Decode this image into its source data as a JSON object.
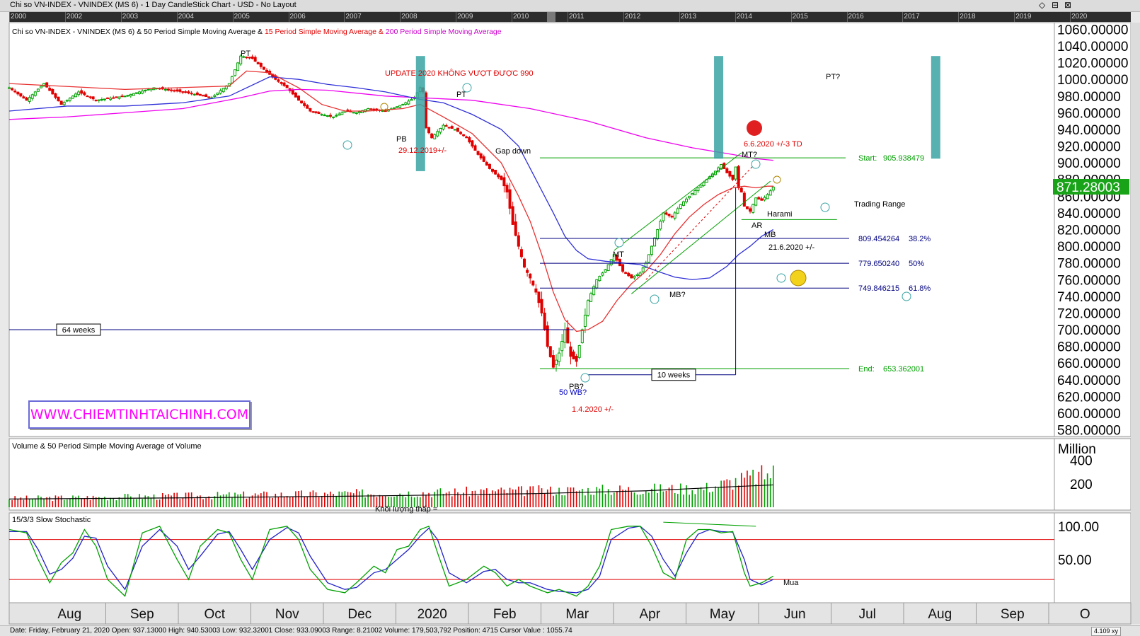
{
  "window": {
    "title": "Chi so VN-INDEX - VNINDEX (MS 6) - 1 Day CandleStick Chart - USD - No Layout",
    "controls": [
      "◇",
      "⊟",
      "⊠"
    ]
  },
  "timeline": {
    "years": [
      "2000",
      "2002",
      "2003",
      "2004",
      "2005",
      "2006",
      "2007",
      "2008",
      "2009",
      "2010",
      "2011",
      "2012",
      "2013",
      "2014",
      "2015",
      "2016",
      "2017",
      "2018",
      "2019",
      "2020"
    ]
  },
  "colors": {
    "candle_up": "#00a000",
    "candle_down": "#e00000",
    "sma15": "#e83030",
    "sma50": "#3030d8",
    "sma200": "#ee00ee",
    "channel": "#00a000",
    "fib": "#000080",
    "background": "#ffffff"
  },
  "chart_data": [
    {
      "type": "candlestick",
      "title": "Chi so VN-INDEX - VNINDEX (MS 6) & 50 Period Simple Moving Average & 15 Period Simple Moving Average & 200 Period Simple Moving Average",
      "title_parts": [
        {
          "text": "Chi so VN-INDEX - VNINDEX (MS 6) & 50 Period Simple Moving Average & ",
          "color": "#000000"
        },
        {
          "text": "15 Period Simple Moving Average & ",
          "color": "#e00000"
        },
        {
          "text": "200 Period Simple Moving Average",
          "color": "#cc00cc"
        }
      ],
      "x_months": [
        "Aug",
        "Sep",
        "Oct",
        "Nov",
        "Dec",
        "2020",
        "Feb",
        "Mar",
        "Apr",
        "May",
        "Jun",
        "Jul",
        "Aug",
        "Sep",
        "O"
      ],
      "y_ticks": [
        "1060.00000",
        "1040.00000",
        "1020.00000",
        "1000.00000",
        "980.00000",
        "960.00000",
        "940.00000",
        "920.00000",
        "900.00000",
        "880.00000",
        "860.00000",
        "840.00000",
        "820.00000",
        "800.00000",
        "780.00000",
        "760.00000",
        "740.00000",
        "720.00000",
        "700.00000",
        "680.00000",
        "660.00000",
        "640.00000",
        "620.00000",
        "600.00000",
        "580.00000"
      ],
      "ylim": [
        572,
        1068
      ],
      "last_price": "871.28003",
      "close_path": [
        [
          0,
          990
        ],
        [
          6,
          975
        ],
        [
          12,
          995
        ],
        [
          18,
          970
        ],
        [
          24,
          985
        ],
        [
          30,
          975
        ],
        [
          40,
          980
        ],
        [
          50,
          990
        ],
        [
          60,
          985
        ],
        [
          70,
          978
        ],
        [
          76,
          995
        ],
        [
          80,
          1028
        ],
        [
          84,
          1025
        ],
        [
          88,
          1012
        ],
        [
          92,
          1000
        ],
        [
          96,
          990
        ],
        [
          100,
          975
        ],
        [
          104,
          962
        ],
        [
          108,
          958
        ],
        [
          112,
          955
        ],
        [
          116,
          962
        ],
        [
          120,
          960
        ],
        [
          124,
          965
        ],
        [
          130,
          962
        ],
        [
          136,
          970
        ],
        [
          140,
          978
        ],
        [
          142,
          990
        ],
        [
          143,
          985
        ],
        [
          144,
          942
        ],
        [
          146,
          930
        ],
        [
          150,
          945
        ],
        [
          154,
          940
        ],
        [
          158,
          930
        ],
        [
          162,
          910
        ],
        [
          166,
          893
        ],
        [
          170,
          880
        ],
        [
          172,
          865
        ],
        [
          174,
          826
        ],
        [
          176,
          800
        ],
        [
          178,
          775
        ],
        [
          180,
          762
        ],
        [
          182,
          745
        ],
        [
          184,
          720
        ],
        [
          186,
          680
        ],
        [
          188,
          655
        ],
        [
          190,
          672
        ],
        [
          192,
          700
        ],
        [
          194,
          668
        ],
        [
          196,
          662
        ],
        [
          198,
          700
        ],
        [
          200,
          735
        ],
        [
          203,
          760
        ],
        [
          206,
          772
        ],
        [
          209,
          790
        ],
        [
          212,
          770
        ],
        [
          215,
          762
        ],
        [
          218,
          768
        ],
        [
          220,
          780
        ],
        [
          222,
          800
        ],
        [
          224,
          820
        ],
        [
          226,
          840
        ],
        [
          229,
          835
        ],
        [
          232,
          850
        ],
        [
          235,
          860
        ],
        [
          238,
          870
        ],
        [
          241,
          880
        ],
        [
          244,
          890
        ],
        [
          246,
          898
        ],
        [
          248,
          888
        ],
        [
          250,
          880
        ],
        [
          251,
          895
        ],
        [
          252,
          870
        ],
        [
          253,
          865
        ],
        [
          254,
          848
        ],
        [
          256,
          842
        ],
        [
          258,
          858
        ],
        [
          260,
          855
        ],
        [
          262,
          862
        ],
        [
          264,
          871
        ]
      ],
      "sma15_path": [
        [
          0,
          995
        ],
        [
          40,
          988
        ],
        [
          76,
          992
        ],
        [
          82,
          1010
        ],
        [
          90,
          1008
        ],
        [
          100,
          990
        ],
        [
          108,
          970
        ],
        [
          116,
          962
        ],
        [
          124,
          962
        ],
        [
          136,
          965
        ],
        [
          142,
          970
        ],
        [
          150,
          955
        ],
        [
          160,
          935
        ],
        [
          170,
          900
        ],
        [
          176,
          860
        ],
        [
          180,
          830
        ],
        [
          184,
          790
        ],
        [
          188,
          745
        ],
        [
          192,
          712
        ],
        [
          196,
          698
        ],
        [
          200,
          700
        ],
        [
          205,
          710
        ],
        [
          210,
          735
        ],
        [
          215,
          755
        ],
        [
          220,
          770
        ],
        [
          225,
          790
        ],
        [
          230,
          815
        ],
        [
          235,
          835
        ],
        [
          240,
          850
        ],
        [
          245,
          862
        ],
        [
          250,
          870
        ],
        [
          254,
          872
        ],
        [
          258,
          870
        ],
        [
          262,
          872
        ],
        [
          264,
          872
        ]
      ],
      "sma50_path": [
        [
          0,
          962
        ],
        [
          20,
          968
        ],
        [
          40,
          968
        ],
        [
          60,
          972
        ],
        [
          76,
          980
        ],
        [
          90,
          1003
        ],
        [
          100,
          1000
        ],
        [
          110,
          994
        ],
        [
          120,
          990
        ],
        [
          130,
          985
        ],
        [
          142,
          976
        ],
        [
          150,
          972
        ],
        [
          160,
          958
        ],
        [
          170,
          940
        ],
        [
          176,
          920
        ],
        [
          182,
          880
        ],
        [
          188,
          840
        ],
        [
          192,
          812
        ],
        [
          196,
          795
        ],
        [
          200,
          785
        ],
        [
          206,
          782
        ],
        [
          212,
          780
        ],
        [
          218,
          778
        ],
        [
          224,
          770
        ],
        [
          230,
          763
        ],
        [
          236,
          760
        ],
        [
          242,
          762
        ],
        [
          248,
          776
        ],
        [
          252,
          790
        ],
        [
          256,
          800
        ],
        [
          260,
          812
        ],
        [
          264,
          820
        ]
      ],
      "sma200_path": [
        [
          0,
          952
        ],
        [
          20,
          955
        ],
        [
          40,
          960
        ],
        [
          60,
          965
        ],
        [
          80,
          978
        ],
        [
          90,
          986
        ],
        [
          100,
          988
        ],
        [
          110,
          987
        ],
        [
          130,
          980
        ],
        [
          142,
          978
        ],
        [
          160,
          975
        ],
        [
          180,
          965
        ],
        [
          200,
          950
        ],
        [
          220,
          930
        ],
        [
          236,
          918
        ],
        [
          250,
          910
        ],
        [
          258,
          905
        ],
        [
          264,
          903
        ]
      ],
      "fib_levels": [
        {
          "price": 905.938479,
          "label": "Start:",
          "value": "905.938479",
          "pct": ""
        },
        {
          "price": 809.454264,
          "label": "",
          "value": "809.454264",
          "pct": "38.2%"
        },
        {
          "price": 779.65024,
          "label": "",
          "value": "779.650240",
          "pct": "50%"
        },
        {
          "price": 749.846215,
          "label": "",
          "value": "749.846215",
          "pct": "61.8%"
        },
        {
          "price": 653.362001,
          "label": "End:",
          "value": "653.362001",
          "pct": ""
        }
      ],
      "annotations": [
        "PT",
        "PT",
        "PB",
        "29.12.2019+/-",
        "Gap down",
        "UPDATE 2020 KHÔNG VƯỢT ĐƯỢC 990",
        "PB?",
        "50 WB?",
        "1.4.2020 +/-",
        "MT",
        "MB?",
        "MT?",
        "6.6.2020 +/-3 TD",
        "AR",
        "Harami",
        "MB",
        "21.6.2020 +/-",
        "Trading Range",
        "PT?",
        "64 weeks",
        "10 weeks"
      ],
      "grid": false
    },
    {
      "type": "bar",
      "title": "Volume & 50 Period Simple Moving Average of Volume",
      "unit": "Million",
      "y_ticks": [
        "400",
        "200"
      ],
      "ylim": [
        0,
        560
      ],
      "annotation": "Khối lượng thấp ="
    },
    {
      "type": "line",
      "title": "15/3/3 Slow Stochastic",
      "y_ticks": [
        "100.00",
        "50.00"
      ],
      "ylim": [
        -15,
        120
      ],
      "levels": [
        80,
        20
      ],
      "k_path": [
        [
          0,
          95
        ],
        [
          6,
          90
        ],
        [
          10,
          50
        ],
        [
          14,
          15
        ],
        [
          18,
          45
        ],
        [
          22,
          60
        ],
        [
          26,
          95
        ],
        [
          30,
          70
        ],
        [
          34,
          20
        ],
        [
          40,
          -5
        ],
        [
          46,
          90
        ],
        [
          52,
          100
        ],
        [
          58,
          50
        ],
        [
          62,
          20
        ],
        [
          66,
          70
        ],
        [
          72,
          95
        ],
        [
          76,
          90
        ],
        [
          80,
          50
        ],
        [
          84,
          20
        ],
        [
          90,
          95
        ],
        [
          96,
          100
        ],
        [
          100,
          80
        ],
        [
          104,
          35
        ],
        [
          110,
          5
        ],
        [
          116,
          0
        ],
        [
          120,
          15
        ],
        [
          126,
          40
        ],
        [
          130,
          30
        ],
        [
          134,
          65
        ],
        [
          138,
          70
        ],
        [
          142,
          95
        ],
        [
          145,
          100
        ],
        [
          148,
          60
        ],
        [
          152,
          10
        ],
        [
          158,
          20
        ],
        [
          164,
          40
        ],
        [
          168,
          30
        ],
        [
          172,
          10
        ],
        [
          176,
          20
        ],
        [
          180,
          10
        ],
        [
          186,
          0
        ],
        [
          190,
          5
        ],
        [
          196,
          -5
        ],
        [
          200,
          10
        ],
        [
          204,
          40
        ],
        [
          208,
          95
        ],
        [
          214,
          100
        ],
        [
          218,
          100
        ],
        [
          222,
          70
        ],
        [
          226,
          30
        ],
        [
          230,
          20
        ],
        [
          234,
          80
        ],
        [
          238,
          95
        ],
        [
          242,
          95
        ],
        [
          246,
          90
        ],
        [
          250,
          92
        ],
        [
          254,
          30
        ],
        [
          256,
          10
        ],
        [
          260,
          15
        ],
        [
          264,
          25
        ]
      ],
      "d_path": [
        [
          0,
          92
        ],
        [
          6,
          92
        ],
        [
          10,
          65
        ],
        [
          14,
          28
        ],
        [
          18,
          35
        ],
        [
          22,
          52
        ],
        [
          26,
          85
        ],
        [
          30,
          82
        ],
        [
          34,
          40
        ],
        [
          40,
          5
        ],
        [
          46,
          70
        ],
        [
          52,
          95
        ],
        [
          58,
          70
        ],
        [
          62,
          35
        ],
        [
          66,
          55
        ],
        [
          72,
          88
        ],
        [
          76,
          92
        ],
        [
          80,
          65
        ],
        [
          84,
          35
        ],
        [
          90,
          80
        ],
        [
          96,
          98
        ],
        [
          100,
          90
        ],
        [
          104,
          55
        ],
        [
          110,
          15
        ],
        [
          116,
          5
        ],
        [
          120,
          8
        ],
        [
          126,
          30
        ],
        [
          130,
          35
        ],
        [
          134,
          50
        ],
        [
          138,
          65
        ],
        [
          142,
          85
        ],
        [
          145,
          97
        ],
        [
          148,
          80
        ],
        [
          152,
          30
        ],
        [
          158,
          15
        ],
        [
          164,
          32
        ],
        [
          168,
          35
        ],
        [
          172,
          20
        ],
        [
          176,
          15
        ],
        [
          180,
          15
        ],
        [
          186,
          5
        ],
        [
          190,
          2
        ],
        [
          196,
          0
        ],
        [
          200,
          5
        ],
        [
          204,
          25
        ],
        [
          208,
          80
        ],
        [
          214,
          97
        ],
        [
          218,
          100
        ],
        [
          222,
          85
        ],
        [
          226,
          50
        ],
        [
          230,
          25
        ],
        [
          234,
          60
        ],
        [
          238,
          88
        ],
        [
          242,
          95
        ],
        [
          246,
          92
        ],
        [
          250,
          91
        ],
        [
          254,
          50
        ],
        [
          256,
          20
        ],
        [
          260,
          12
        ],
        [
          264,
          20
        ]
      ],
      "annotation": "Mua"
    }
  ],
  "website": "WWW.CHIEMTINHTAICHINH.COM",
  "status": {
    "text": "Date: Friday, February 21, 2020 Open: 937.13000 High: 940.53003 Low: 932.32001 Close: 933.09003 Range: 8.21002 Volume: 179,503,792 Position: 4715 Cursor Value : 1055.74",
    "zoom": "4.109 xy"
  }
}
